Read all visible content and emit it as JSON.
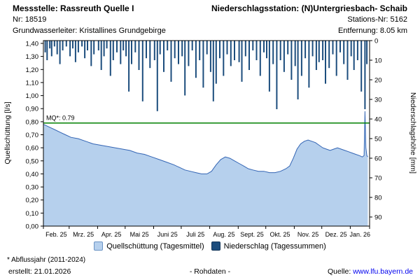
{
  "header": {
    "left": {
      "title": "Messstelle: Rassreuth Quelle I",
      "nr": "Nr: 18519",
      "aquifer": "Grundwasserleiter: Kristallines Grundgebirge"
    },
    "right": {
      "title": "Niederschlagsstation: (N)Untergriesbach- Schaib",
      "station_nr": "Stations-Nr: 5162",
      "distance": "Entfernung: 8.05 km"
    }
  },
  "chart_data": {
    "type": "area+bar",
    "title": "",
    "left_axis": {
      "label": "Quellschüttung [l/s]",
      "min": 0.0,
      "max": 1.45,
      "ticks": [
        "0,00",
        "0,10",
        "0,20",
        "0,30",
        "0,40",
        "0,50",
        "0,60",
        "0,70",
        "0,80",
        "0,90",
        "1,00",
        "1,10",
        "1,20",
        "1,30",
        "1,40"
      ]
    },
    "right_axis": {
      "label": "Niederschlagshöhe [mm]",
      "min": 0,
      "max": 90,
      "inverted": true,
      "ticks": [
        0,
        10,
        20,
        30,
        40,
        50,
        60,
        70,
        80,
        90
      ]
    },
    "x_axis": {
      "labels": [
        "Feb. 25",
        "Mrz. 25",
        "Apr. 25",
        "Mai 25",
        "Juni 25",
        "Juli 25",
        "Aug. 25",
        "Sept. 25",
        "Okt. 25",
        "Nov. 25",
        "Dez. 25",
        "Jan. 26"
      ],
      "month_starts": [
        0,
        28,
        59,
        89,
        120,
        150,
        181,
        212,
        242,
        273,
        303,
        334,
        355
      ],
      "days_total": 355
    },
    "mq": {
      "value": 0.79,
      "label": "MQ*: 0.79",
      "color": "#008000"
    },
    "discharge": {
      "name": "Quellschüttung (Tagesmittel)",
      "color_fill": "#b6d0ed",
      "color_line": "#3465b4",
      "points": [
        [
          0,
          0.78
        ],
        [
          6,
          0.76
        ],
        [
          12,
          0.74
        ],
        [
          18,
          0.72
        ],
        [
          24,
          0.7
        ],
        [
          30,
          0.68
        ],
        [
          38,
          0.67
        ],
        [
          46,
          0.65
        ],
        [
          54,
          0.63
        ],
        [
          62,
          0.62
        ],
        [
          70,
          0.61
        ],
        [
          78,
          0.6
        ],
        [
          86,
          0.59
        ],
        [
          94,
          0.58
        ],
        [
          102,
          0.56
        ],
        [
          110,
          0.55
        ],
        [
          118,
          0.53
        ],
        [
          126,
          0.51
        ],
        [
          134,
          0.49
        ],
        [
          142,
          0.47
        ],
        [
          148,
          0.45
        ],
        [
          154,
          0.43
        ],
        [
          160,
          0.42
        ],
        [
          166,
          0.41
        ],
        [
          172,
          0.4
        ],
        [
          178,
          0.4
        ],
        [
          183,
          0.42
        ],
        [
          188,
          0.47
        ],
        [
          193,
          0.51
        ],
        [
          198,
          0.53
        ],
        [
          203,
          0.52
        ],
        [
          208,
          0.5
        ],
        [
          213,
          0.48
        ],
        [
          218,
          0.46
        ],
        [
          223,
          0.44
        ],
        [
          228,
          0.43
        ],
        [
          234,
          0.42
        ],
        [
          240,
          0.42
        ],
        [
          246,
          0.41
        ],
        [
          252,
          0.41
        ],
        [
          258,
          0.42
        ],
        [
          264,
          0.44
        ],
        [
          268,
          0.46
        ],
        [
          272,
          0.52
        ],
        [
          276,
          0.59
        ],
        [
          280,
          0.63
        ],
        [
          284,
          0.65
        ],
        [
          288,
          0.66
        ],
        [
          292,
          0.65
        ],
        [
          296,
          0.64
        ],
        [
          300,
          0.62
        ],
        [
          304,
          0.6
        ],
        [
          308,
          0.59
        ],
        [
          312,
          0.58
        ],
        [
          316,
          0.59
        ],
        [
          320,
          0.6
        ],
        [
          324,
          0.59
        ],
        [
          328,
          0.58
        ],
        [
          332,
          0.57
        ],
        [
          336,
          0.56
        ],
        [
          340,
          0.55
        ],
        [
          344,
          0.54
        ],
        [
          347,
          0.53
        ],
        [
          349,
          0.54
        ],
        [
          350,
          0.88
        ],
        [
          351,
          0.6
        ],
        [
          352,
          0.54
        ],
        [
          353,
          0.53
        ]
      ]
    },
    "precipitation": {
      "name": "Niederschlag (Tagessummen)",
      "color": "#1c4d7d",
      "bars": [
        [
          2,
          6
        ],
        [
          4,
          10
        ],
        [
          7,
          4
        ],
        [
          9,
          8
        ],
        [
          12,
          3
        ],
        [
          15,
          7
        ],
        [
          18,
          12
        ],
        [
          21,
          5
        ],
        [
          25,
          3
        ],
        [
          29,
          8
        ],
        [
          32,
          4
        ],
        [
          35,
          11
        ],
        [
          38,
          6
        ],
        [
          42,
          3
        ],
        [
          45,
          9
        ],
        [
          48,
          5
        ],
        [
          52,
          13
        ],
        [
          55,
          7
        ],
        [
          60,
          5
        ],
        [
          63,
          15
        ],
        [
          66,
          8
        ],
        [
          69,
          4
        ],
        [
          73,
          18
        ],
        [
          76,
          10
        ],
        [
          80,
          6
        ],
        [
          84,
          12
        ],
        [
          87,
          5
        ],
        [
          90,
          8
        ],
        [
          93,
          26
        ],
        [
          96,
          12
        ],
        [
          100,
          6
        ],
        [
          104,
          15
        ],
        [
          108,
          31
        ],
        [
          112,
          9
        ],
        [
          116,
          14
        ],
        [
          121,
          10
        ],
        [
          124,
          36
        ],
        [
          127,
          7
        ],
        [
          131,
          16
        ],
        [
          135,
          5
        ],
        [
          139,
          21
        ],
        [
          143,
          9
        ],
        [
          147,
          12
        ],
        [
          151,
          8
        ],
        [
          154,
          28
        ],
        [
          158,
          13
        ],
        [
          162,
          5
        ],
        [
          166,
          19
        ],
        [
          170,
          10
        ],
        [
          174,
          24
        ],
        [
          178,
          7
        ],
        [
          182,
          16
        ],
        [
          185,
          31
        ],
        [
          188,
          22
        ],
        [
          192,
          9
        ],
        [
          196,
          18
        ],
        [
          200,
          7
        ],
        [
          204,
          13
        ],
        [
          208,
          10
        ],
        [
          213,
          11
        ],
        [
          216,
          21
        ],
        [
          220,
          8
        ],
        [
          224,
          15
        ],
        [
          228,
          5
        ],
        [
          232,
          10
        ],
        [
          236,
          18
        ],
        [
          240,
          6
        ],
        [
          243,
          9
        ],
        [
          246,
          26
        ],
        [
          250,
          12
        ],
        [
          254,
          35
        ],
        [
          258,
          10
        ],
        [
          262,
          16
        ],
        [
          266,
          7
        ],
        [
          270,
          20
        ],
        [
          274,
          13
        ],
        [
          277,
          30
        ],
        [
          281,
          18
        ],
        [
          285,
          9
        ],
        [
          289,
          24
        ],
        [
          293,
          8
        ],
        [
          297,
          15
        ],
        [
          300,
          11
        ],
        [
          304,
          10
        ],
        [
          307,
          22
        ],
        [
          311,
          14
        ],
        [
          315,
          7
        ],
        [
          319,
          18
        ],
        [
          323,
          6
        ],
        [
          327,
          12
        ],
        [
          331,
          20
        ],
        [
          335,
          8
        ],
        [
          338,
          15
        ],
        [
          342,
          10
        ],
        [
          346,
          26
        ],
        [
          350,
          35
        ],
        [
          352,
          12
        ]
      ]
    }
  },
  "legend": {
    "discharge": "Quellschüttung (Tagesmittel)",
    "precipitation": "Niederschlag (Tagessummen)"
  },
  "footer": {
    "note": "* Abflussjahr (2011-2024)",
    "created": "erstellt: 21.01.2026",
    "center": "- Rohdaten -",
    "source_label": "Quelle:",
    "source_link": "www.lfu.bayern.de"
  }
}
